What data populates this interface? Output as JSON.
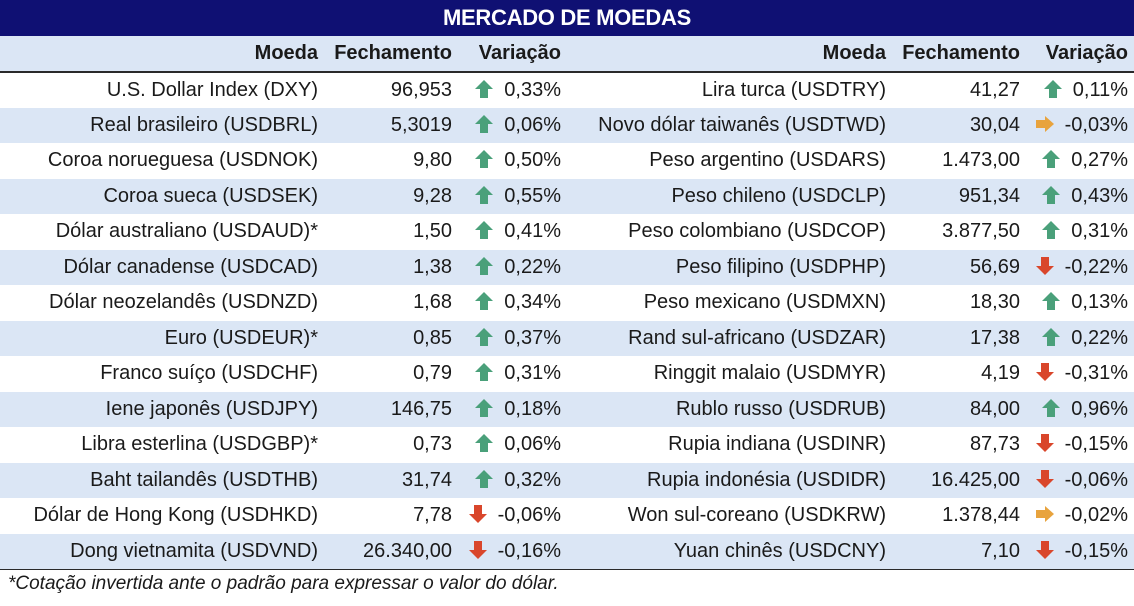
{
  "title": "MERCADO DE MOEDAS",
  "headers": {
    "left": {
      "moeda": "Moeda",
      "fechamento": "Fechamento",
      "variacao": "Variação"
    },
    "right": {
      "moeda": "Moeda",
      "fechamento": "Fechamento",
      "variacao": "Variação"
    }
  },
  "colors": {
    "title_bg": "#0f1073",
    "row_alt": "#dbe6f5",
    "arrow_up": "#4aa07a",
    "arrow_down": "#d9462b",
    "arrow_flat": "#e8a33d"
  },
  "rows": [
    {
      "l_name": "U.S. Dollar Index (DXY)",
      "l_close": "96,953",
      "l_icon": "arrow-up-icon",
      "l_var": "0,33%",
      "r_name": "Lira turca (USDTRY)",
      "r_close": "41,27",
      "r_icon": "arrow-up-icon",
      "r_var": "0,11%"
    },
    {
      "l_name": "Real brasileiro (USDBRL)",
      "l_close": "5,3019",
      "l_icon": "arrow-up-icon",
      "l_var": "0,06%",
      "r_name": "Novo dólar taiwanês (USDTWD)",
      "r_close": "30,04",
      "r_icon": "arrow-right-icon",
      "r_var": "-0,03%"
    },
    {
      "l_name": "Coroa norueguesa (USDNOK)",
      "l_close": "9,80",
      "l_icon": "arrow-up-icon",
      "l_var": "0,50%",
      "r_name": "Peso argentino (USDARS)",
      "r_close": "1.473,00",
      "r_icon": "arrow-up-icon",
      "r_var": "0,27%"
    },
    {
      "l_name": "Coroa sueca (USDSEK)",
      "l_close": "9,28",
      "l_icon": "arrow-up-icon",
      "l_var": "0,55%",
      "r_name": "Peso chileno (USDCLP)",
      "r_close": "951,34",
      "r_icon": "arrow-up-icon",
      "r_var": "0,43%"
    },
    {
      "l_name": "Dólar australiano (USDAUD)*",
      "l_close": "1,50",
      "l_icon": "arrow-up-icon",
      "l_var": "0,41%",
      "r_name": "Peso colombiano (USDCOP)",
      "r_close": "3.877,50",
      "r_icon": "arrow-up-icon",
      "r_var": "0,31%"
    },
    {
      "l_name": "Dólar canadense (USDCAD)",
      "l_close": "1,38",
      "l_icon": "arrow-up-icon",
      "l_var": "0,22%",
      "r_name": "Peso filipino (USDPHP)",
      "r_close": "56,69",
      "r_icon": "arrow-down-icon",
      "r_var": "-0,22%"
    },
    {
      "l_name": "Dólar neozelandês (USDNZD)",
      "l_close": "1,68",
      "l_icon": "arrow-up-icon",
      "l_var": "0,34%",
      "r_name": "Peso mexicano (USDMXN)",
      "r_close": "18,30",
      "r_icon": "arrow-up-icon",
      "r_var": "0,13%"
    },
    {
      "l_name": "Euro (USDEUR)*",
      "l_close": "0,85",
      "l_icon": "arrow-up-icon",
      "l_var": "0,37%",
      "r_name": "Rand sul-africano (USDZAR)",
      "r_close": "17,38",
      "r_icon": "arrow-up-icon",
      "r_var": "0,22%"
    },
    {
      "l_name": "Franco suíço (USDCHF)",
      "l_close": "0,79",
      "l_icon": "arrow-up-icon",
      "l_var": "0,31%",
      "r_name": "Ringgit malaio (USDMYR)",
      "r_close": "4,19",
      "r_icon": "arrow-down-icon",
      "r_var": "-0,31%"
    },
    {
      "l_name": "Iene japonês (USDJPY)",
      "l_close": "146,75",
      "l_icon": "arrow-up-icon",
      "l_var": "0,18%",
      "r_name": "Rublo russo (USDRUB)",
      "r_close": "84,00",
      "r_icon": "arrow-up-icon",
      "r_var": "0,96%"
    },
    {
      "l_name": "Libra esterlina (USDGBP)*",
      "l_close": "0,73",
      "l_icon": "arrow-up-icon",
      "l_var": "0,06%",
      "r_name": "Rupia indiana (USDINR)",
      "r_close": "87,73",
      "r_icon": "arrow-down-icon",
      "r_var": "-0,15%"
    },
    {
      "l_name": "Baht tailandês (USDTHB)",
      "l_close": "31,74",
      "l_icon": "arrow-up-icon",
      "l_var": "0,32%",
      "r_name": "Rupia indonésia (USDIDR)",
      "r_close": "16.425,00",
      "r_icon": "arrow-down-icon",
      "r_var": "-0,06%"
    },
    {
      "l_name": "Dólar de Hong Kong (USDHKD)",
      "l_close": "7,78",
      "l_icon": "arrow-down-icon",
      "l_var": "-0,06%",
      "r_name": "Won sul-coreano (USDKRW)",
      "r_close": "1.378,44",
      "r_icon": "arrow-right-icon",
      "r_var": "-0,02%"
    },
    {
      "l_name": "Dong vietnamita (USDVND)",
      "l_close": "26.340,00",
      "l_icon": "arrow-down-icon",
      "l_var": "-0,16%",
      "r_name": "Yuan chinês (USDCNY)",
      "r_close": "7,10",
      "r_icon": "arrow-down-icon",
      "r_var": "-0,15%"
    }
  ],
  "footnote": "*Cotação invertida ante o padrão para expressar o valor do dólar."
}
